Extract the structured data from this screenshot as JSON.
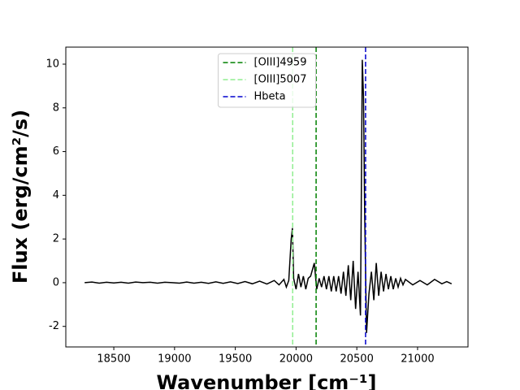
{
  "chart_data": {
    "type": "line",
    "xlabel": "Wavenumber [cm⁻¹]",
    "ylabel": "Flux (erg/cm²/s)",
    "xlim": [
      18105,
      21415
    ],
    "xticks": [
      18500,
      19000,
      19500,
      20000,
      20500,
      21000
    ],
    "ylim": [
      -2.94,
      10.78
    ],
    "yticks": [
      -2,
      0,
      2,
      4,
      6,
      8,
      10
    ],
    "legend": "upper center",
    "series": [
      {
        "color": "#000000",
        "x": [
          18260,
          18320,
          18380,
          18440,
          18500,
          18560,
          18620,
          18680,
          18740,
          18800,
          18860,
          18920,
          18980,
          19040,
          19100,
          19160,
          19220,
          19280,
          19340,
          19400,
          19460,
          19520,
          19580,
          19640,
          19700,
          19760,
          19820,
          19860,
          19900,
          19920,
          19940,
          19960,
          19970,
          19980,
          20000,
          20020,
          20040,
          20060,
          20080,
          20100,
          20120,
          20140,
          20150,
          20170,
          20190,
          20210,
          20230,
          20250,
          20270,
          20290,
          20310,
          20330,
          20350,
          20370,
          20390,
          20410,
          20430,
          20450,
          20470,
          20490,
          20510,
          20530,
          20545,
          20555,
          20565,
          20580,
          20600,
          20620,
          20640,
          20660,
          20680,
          20700,
          20720,
          20740,
          20760,
          20780,
          20800,
          20820,
          20840,
          20860,
          20880,
          20900,
          20960,
          21020,
          21080,
          21140,
          21200,
          21240,
          21280
        ],
        "values": [
          0.0,
          0.03,
          -0.02,
          0.02,
          -0.01,
          0.02,
          -0.02,
          0.03,
          0.0,
          0.02,
          -0.02,
          0.02,
          0.0,
          -0.02,
          0.03,
          -0.02,
          0.02,
          -0.03,
          0.04,
          -0.03,
          0.04,
          -0.04,
          0.05,
          -0.05,
          0.07,
          -0.06,
          0.1,
          -0.1,
          0.15,
          -0.2,
          0.1,
          2.0,
          2.5,
          0.2,
          -0.3,
          0.4,
          -0.2,
          0.3,
          -0.3,
          0.2,
          0.3,
          0.7,
          0.9,
          -0.3,
          0.2,
          -0.2,
          0.3,
          -0.3,
          0.3,
          -0.4,
          0.3,
          -0.4,
          0.3,
          -0.5,
          0.5,
          -0.6,
          0.8,
          -0.8,
          1.0,
          -1.2,
          0.5,
          -1.5,
          10.2,
          8.5,
          3.0,
          -2.3,
          -0.5,
          0.5,
          -0.8,
          0.9,
          -0.6,
          0.5,
          -0.4,
          0.4,
          -0.3,
          0.3,
          -0.3,
          0.2,
          -0.2,
          0.2,
          -0.1,
          0.15,
          -0.1,
          0.1,
          -0.1,
          0.15,
          -0.05,
          0.05,
          -0.05
        ]
      }
    ],
    "vlines": [
      {
        "name": "[OIII]4959",
        "color": "#008000",
        "x": 20165,
        "linestyle": "dashed"
      },
      {
        "name": "[OIII]5007",
        "color": "#90ee90",
        "x": 19972,
        "linestyle": "dashed"
      },
      {
        "name": "Hbeta",
        "color": "#0000cd",
        "x": 20572,
        "linestyle": "dashed"
      }
    ]
  }
}
